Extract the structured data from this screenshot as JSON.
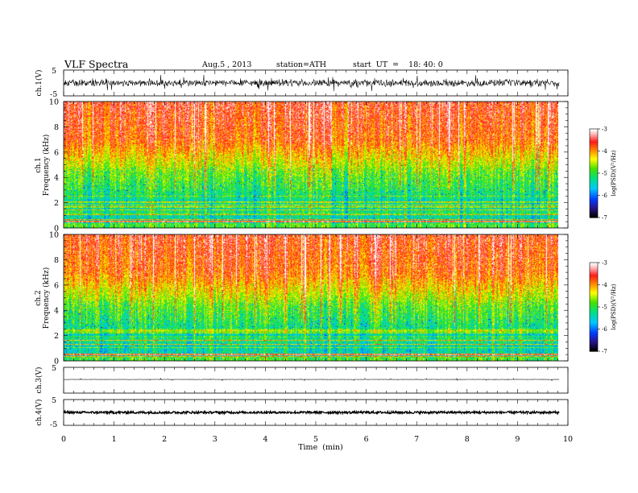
{
  "header": {
    "title": "VLF  Spectra",
    "date": "Aug.5  , 2013",
    "station": "station=ATH",
    "start": "start  UT  =    18: 40: 0"
  },
  "chart_data": [
    {
      "type": "line",
      "id": "ch1-waveform",
      "ylabel": "ch.1(V)",
      "ylim": [
        -5,
        5
      ],
      "y_ticks": [
        "5",
        "-5"
      ],
      "xlim": [
        0,
        10
      ],
      "data_xmax": 9.83,
      "series": [
        {
          "color": "#000000",
          "envelope_amplitude_V": [
            1.6,
            3.8
          ]
        }
      ]
    },
    {
      "type": "heatmap",
      "id": "ch1-spectrogram",
      "ylabel": "Frequency  (kHz)",
      "channel_label": "ch.1",
      "ylim": [
        0,
        10
      ],
      "y_ticks": [
        "0",
        "2",
        "4",
        "6",
        "8",
        "10"
      ],
      "xlim": [
        0,
        10
      ],
      "data_xmax": 9.83,
      "colorbar": {
        "label": "log(PSD)(V²/Hz)",
        "range": [
          -7,
          -3
        ],
        "ticks": [
          "-7",
          "-6",
          "-5",
          "-4",
          "-3"
        ]
      }
    },
    {
      "type": "heatmap",
      "id": "ch2-spectrogram",
      "ylabel": "Frequency  (kHz)",
      "channel_label": "ch.2",
      "ylim": [
        0,
        10
      ],
      "y_ticks": [
        "0",
        "2",
        "4",
        "6",
        "8",
        "10"
      ],
      "xlim": [
        0,
        10
      ],
      "data_xmax": 9.83,
      "colorbar": {
        "label": "log(PSD)(V²/Hz)",
        "range": [
          -7,
          -3
        ],
        "ticks": [
          "-7",
          "-6",
          "-5",
          "-4",
          "-3"
        ]
      }
    },
    {
      "type": "line",
      "id": "ch3-waveform",
      "ylabel": "ch.3(V)",
      "ylim": [
        -5,
        5
      ],
      "y_ticks": [
        "5"
      ],
      "xlim": [
        0,
        10
      ],
      "data_xmax": 9.83,
      "series": [
        {
          "color": "#000000",
          "level_V": 0.3
        }
      ]
    },
    {
      "type": "line",
      "id": "ch4-waveform",
      "ylabel": "ch.4(V)",
      "ylim": [
        -5,
        5
      ],
      "y_ticks": [
        "5",
        "-5"
      ],
      "xlim": [
        0,
        10
      ],
      "data_xmax": 9.83,
      "series": [
        {
          "color": "#000000",
          "level_V": 0.0
        }
      ]
    }
  ],
  "xaxis": {
    "label": "Time  (min)",
    "ticks": [
      "0",
      "1",
      "2",
      "3",
      "4",
      "5",
      "6",
      "7",
      "8",
      "9",
      "10"
    ]
  },
  "colors": {
    "scale": [
      "#000000",
      "#2020c0",
      "#00b0ff",
      "#00e090",
      "#40e000",
      "#ffff00",
      "#ff8000",
      "#ff2020",
      "#ffc0c0",
      "#ffffff"
    ]
  }
}
